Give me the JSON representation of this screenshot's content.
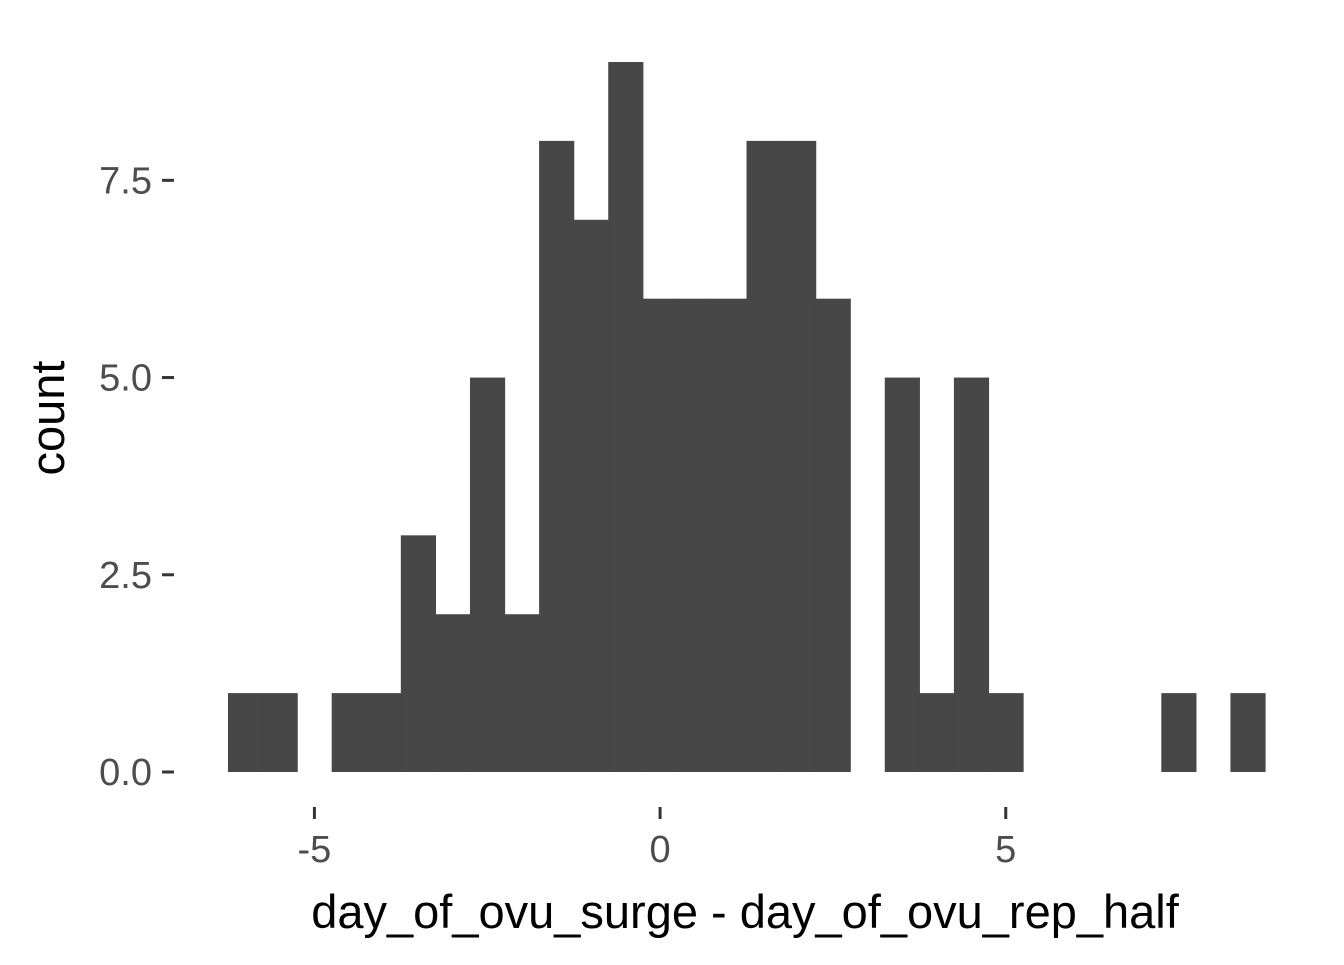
{
  "chart_data": {
    "type": "bar",
    "subtype": "histogram",
    "xlabel": "day_of_ovu_surge - day_of_ovu_rep_half",
    "ylabel": "count",
    "bar_color": "#474747",
    "background": "#ffffff",
    "grid": false,
    "bin_width": 0.5,
    "bins": [
      {
        "x0": -6.25,
        "x1": -5.75,
        "count": 1
      },
      {
        "x0": -5.75,
        "x1": -5.25,
        "count": 1
      },
      {
        "x0": -5.25,
        "x1": -4.75,
        "count": 0
      },
      {
        "x0": -4.75,
        "x1": -4.25,
        "count": 1
      },
      {
        "x0": -4.25,
        "x1": -3.75,
        "count": 1
      },
      {
        "x0": -3.75,
        "x1": -3.25,
        "count": 3
      },
      {
        "x0": -3.25,
        "x1": -2.75,
        "count": 2
      },
      {
        "x0": -2.75,
        "x1": -2.25,
        "count": 5
      },
      {
        "x0": -2.25,
        "x1": -1.75,
        "count": 2
      },
      {
        "x0": -1.75,
        "x1": -1.25,
        "count": 8
      },
      {
        "x0": -1.25,
        "x1": -0.75,
        "count": 7
      },
      {
        "x0": -0.75,
        "x1": -0.25,
        "count": 9
      },
      {
        "x0": -0.25,
        "x1": 0.25,
        "count": 6
      },
      {
        "x0": 0.25,
        "x1": 0.75,
        "count": 6
      },
      {
        "x0": 0.75,
        "x1": 1.25,
        "count": 6
      },
      {
        "x0": 1.25,
        "x1": 1.75,
        "count": 8
      },
      {
        "x0": 1.75,
        "x1": 2.25,
        "count": 8
      },
      {
        "x0": 2.25,
        "x1": 2.75,
        "count": 6
      },
      {
        "x0": 2.75,
        "x1": 3.25,
        "count": 0
      },
      {
        "x0": 3.25,
        "x1": 3.75,
        "count": 5
      },
      {
        "x0": 3.75,
        "x1": 4.25,
        "count": 1
      },
      {
        "x0": 4.25,
        "x1": 4.75,
        "count": 5
      },
      {
        "x0": 4.75,
        "x1": 5.25,
        "count": 1
      },
      {
        "x0": 5.25,
        "x1": 5.75,
        "count": 0
      },
      {
        "x0": 5.75,
        "x1": 6.25,
        "count": 0
      },
      {
        "x0": 6.25,
        "x1": 6.75,
        "count": 0
      },
      {
        "x0": 6.75,
        "x1": 7.25,
        "count": 0
      },
      {
        "x0": 7.25,
        "x1": 7.75,
        "count": 1
      },
      {
        "x0": 7.75,
        "x1": 8.25,
        "count": 0
      },
      {
        "x0": 8.25,
        "x1": 8.75,
        "count": 1
      }
    ],
    "xlim": [
      -6.25,
      8.75
    ],
    "ylim": [
      0,
      9
    ],
    "x_ticks": [
      {
        "value": -5,
        "label": "-5"
      },
      {
        "value": 0,
        "label": "0"
      },
      {
        "value": 5,
        "label": "5"
      }
    ],
    "y_ticks": [
      {
        "value": 0,
        "label": "0.0"
      },
      {
        "value": 2.5,
        "label": "2.5"
      },
      {
        "value": 5,
        "label": "5.0"
      },
      {
        "value": 7.5,
        "label": "7.5"
      }
    ]
  }
}
